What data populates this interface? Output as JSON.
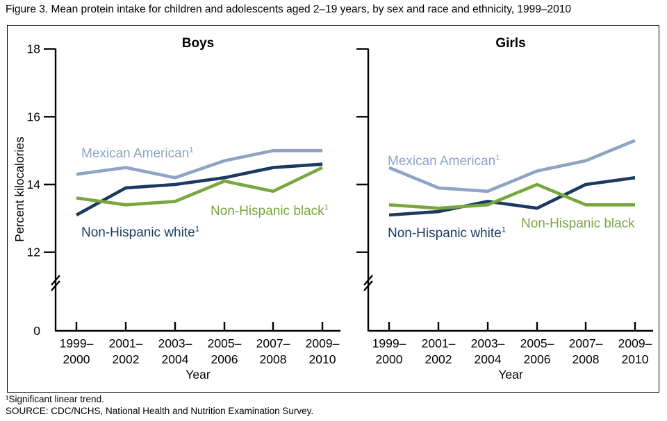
{
  "figure_title": "Figure 3. Mean protein intake for children and adolescents aged 2–19 years, by sex and race and ethnicity, 1999–2010",
  "footnotes": [
    "¹Significant linear trend.",
    "SOURCE: CDC/NCHS, National Health and Nutrition Examination Survey."
  ],
  "colors": {
    "mexican_american": "#8FA3C5",
    "non_hispanic_white": "#1A3A5F",
    "non_hispanic_black": "#77A73E",
    "axis": "#000000"
  },
  "chart_data": {
    "type": "line",
    "categories": [
      "1999–2000",
      "2001–2002",
      "2003–2004",
      "2005–2006",
      "2007–2008",
      "2009–2010"
    ],
    "xlabel": "Year",
    "ylabel": "Percent kilocalories",
    "y_ticks": [
      0,
      12,
      14,
      16,
      18
    ],
    "ylim": [
      0,
      18
    ],
    "axis_break": true,
    "grid": false,
    "legend_position": "inline-labels",
    "panels": [
      {
        "title": "Boys",
        "series": [
          {
            "name": "Mexican American",
            "superscript": "1",
            "color_key": "mexican_american",
            "values": [
              14.3,
              14.5,
              14.2,
              14.7,
              15.0,
              15.0
            ]
          },
          {
            "name": "Non-Hispanic white",
            "superscript": "1",
            "color_key": "non_hispanic_white",
            "values": [
              13.1,
              13.9,
              14.0,
              14.2,
              14.5,
              14.6
            ]
          },
          {
            "name": "Non-Hispanic black",
            "superscript": "1",
            "color_key": "non_hispanic_black",
            "values": [
              13.6,
              13.4,
              13.5,
              14.1,
              13.8,
              14.5
            ]
          }
        ]
      },
      {
        "title": "Girls",
        "series": [
          {
            "name": "Mexican American",
            "superscript": "1",
            "color_key": "mexican_american",
            "values": [
              14.5,
              13.9,
              13.8,
              14.4,
              14.7,
              15.3
            ]
          },
          {
            "name": "Non-Hispanic white",
            "superscript": "1",
            "color_key": "non_hispanic_white",
            "values": [
              13.1,
              13.2,
              13.5,
              13.3,
              14.0,
              14.2
            ]
          },
          {
            "name": "Non-Hispanic black",
            "superscript": "",
            "color_key": "non_hispanic_black",
            "values": [
              13.4,
              13.3,
              13.4,
              14.0,
              13.4,
              13.4
            ]
          }
        ]
      }
    ]
  }
}
